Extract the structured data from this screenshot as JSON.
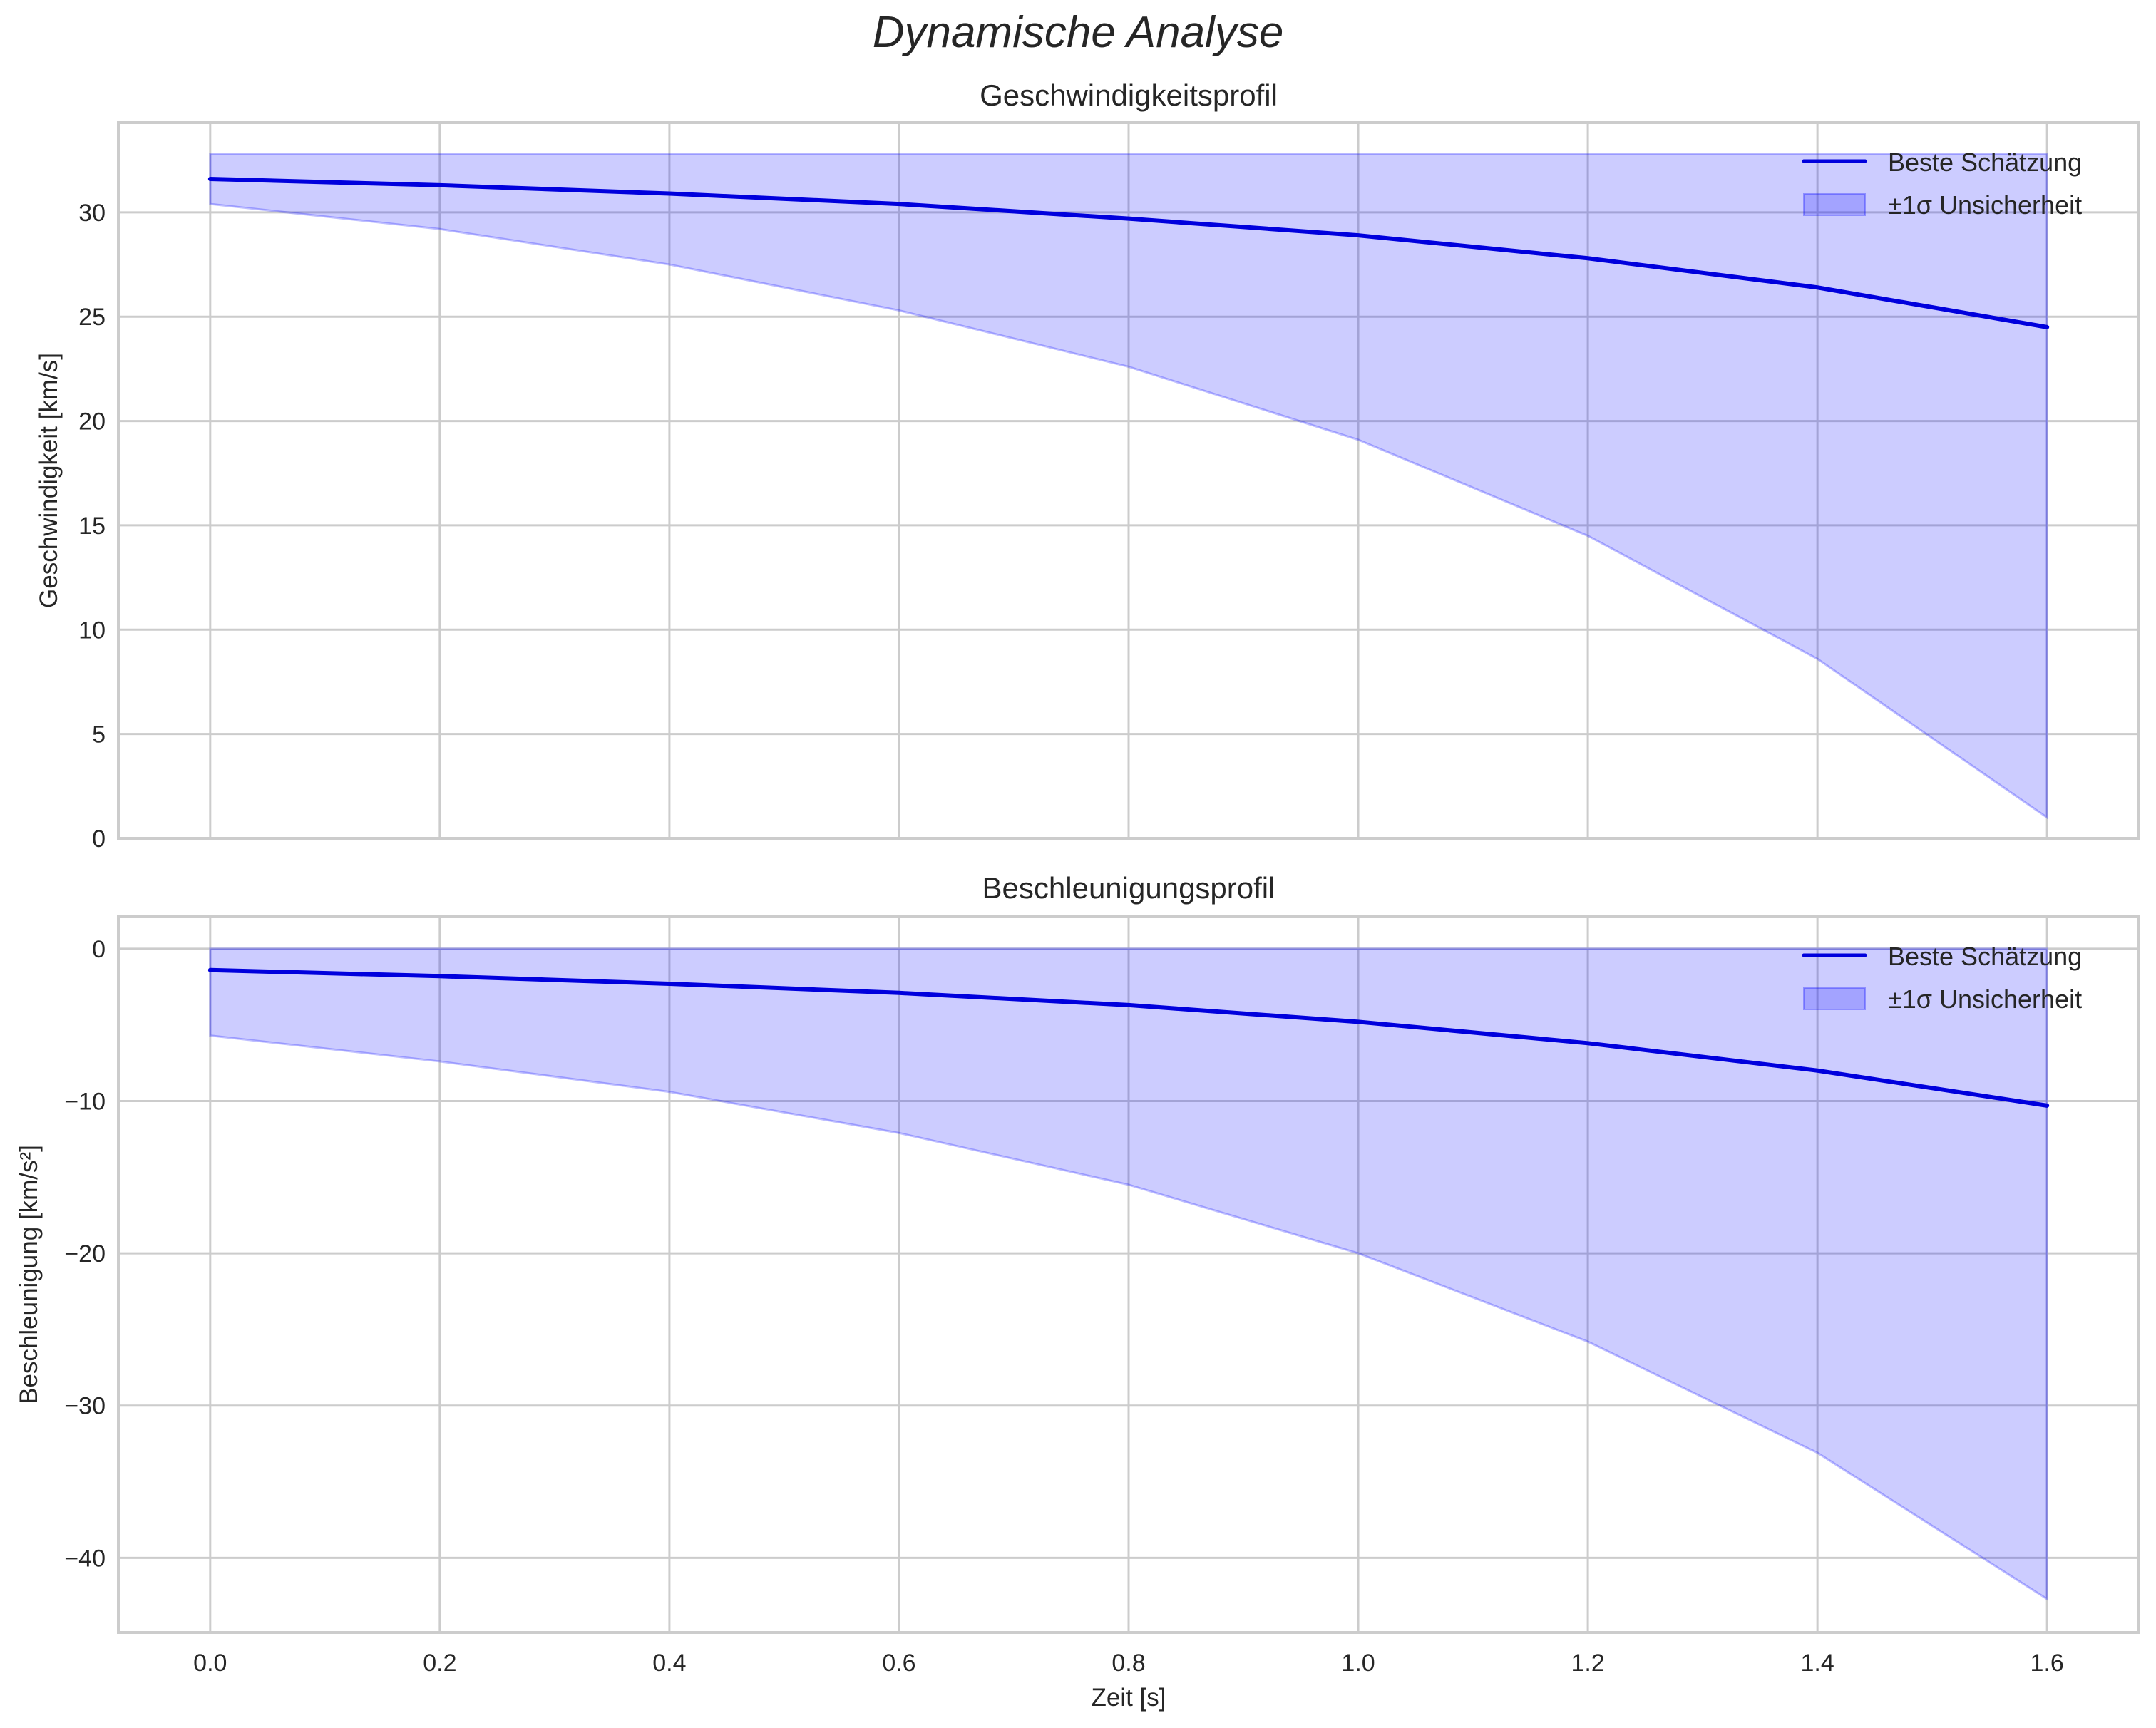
{
  "figure": {
    "suptitle": "Dynamische Analyse",
    "colors": {
      "line": "#0000dd",
      "band_fill": "#0000ff",
      "band_alpha": 0.2,
      "grid": "#cccccc",
      "spine": "#cccccc",
      "text": "#262626"
    }
  },
  "chart_data": [
    {
      "type": "line",
      "title": "Geschwindigkeitsprofil",
      "xlabel": "",
      "ylabel": "Geschwindigkeit [km/s]",
      "xlim": [
        -0.08,
        1.68
      ],
      "ylim": [
        0,
        34.3
      ],
      "xticks": [
        0.0,
        0.2,
        0.4,
        0.6,
        0.8,
        1.0,
        1.2,
        1.4,
        1.6
      ],
      "xticklabels_visible": false,
      "yticks": [
        0,
        5,
        10,
        15,
        20,
        25,
        30
      ],
      "yticklabels": [
        "0",
        "5",
        "10",
        "15",
        "20",
        "25",
        "30"
      ],
      "grid": true,
      "legend_position": "upper right",
      "x": [
        0.0,
        0.2,
        0.4,
        0.6,
        0.8,
        1.0,
        1.2,
        1.4,
        1.6
      ],
      "series": [
        {
          "name": "Beste Schätzung",
          "kind": "line",
          "values": [
            31.6,
            31.3,
            30.9,
            30.4,
            29.7,
            28.9,
            27.8,
            26.4,
            24.5
          ]
        },
        {
          "name": "±1σ Unsicherheit",
          "kind": "band",
          "lower": [
            30.4,
            29.2,
            27.5,
            25.3,
            22.6,
            19.1,
            14.5,
            8.6,
            1.0
          ],
          "upper": [
            32.8,
            32.8,
            32.8,
            32.8,
            32.8,
            32.8,
            32.8,
            32.8,
            32.8
          ]
        }
      ]
    },
    {
      "type": "line",
      "title": "Beschleunigungsprofil",
      "xlabel": "Zeit [s]",
      "ylabel": "Beschleunigung [km/s²]",
      "xlim": [
        -0.08,
        1.68
      ],
      "ylim": [
        -44.9,
        2.1
      ],
      "xticks": [
        0.0,
        0.2,
        0.4,
        0.6,
        0.8,
        1.0,
        1.2,
        1.4,
        1.6
      ],
      "xticklabels": [
        "0.0",
        "0.2",
        "0.4",
        "0.6",
        "0.8",
        "1.0",
        "1.2",
        "1.4",
        "1.6"
      ],
      "yticks": [
        0,
        -10,
        -20,
        -30,
        -40
      ],
      "yticklabels": [
        "0",
        "−10",
        "−20",
        "−30",
        "−40"
      ],
      "grid": true,
      "legend_position": "upper right",
      "x": [
        0.0,
        0.2,
        0.4,
        0.6,
        0.8,
        1.0,
        1.2,
        1.4,
        1.6
      ],
      "series": [
        {
          "name": "Beste Schätzung",
          "kind": "line",
          "values": [
            -1.4,
            -1.8,
            -2.3,
            -2.9,
            -3.7,
            -4.8,
            -6.2,
            -8.0,
            -10.3
          ]
        },
        {
          "name": "±1σ Unsicherheit",
          "kind": "band",
          "lower": [
            -5.7,
            -7.4,
            -9.4,
            -12.1,
            -15.5,
            -20.0,
            -25.8,
            -33.1,
            -42.7
          ],
          "upper": [
            0,
            0,
            0,
            0,
            0,
            0,
            0,
            0,
            0
          ]
        }
      ]
    }
  ]
}
